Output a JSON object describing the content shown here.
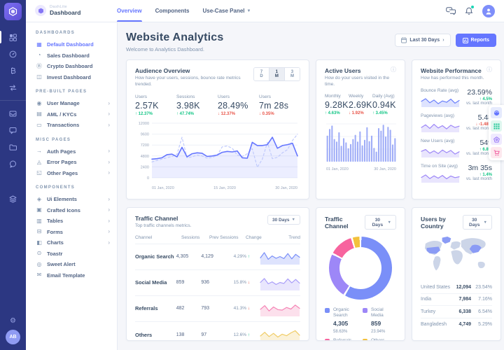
{
  "brand": {
    "name": "DashLite",
    "page": "Dashboard",
    "logo_icon": "hexagon-icon"
  },
  "topnav": {
    "tabs": [
      {
        "label": "Overview",
        "active": true,
        "has_caret": false
      },
      {
        "label": "Components",
        "active": false,
        "has_caret": false
      },
      {
        "label": "Use-Case Panel",
        "active": false,
        "has_caret": true
      }
    ],
    "icons": [
      "chat-bubbles-icon",
      "bell-icon",
      "user-avatar-icon"
    ]
  },
  "rail": {
    "icons": [
      "dashboards-grid-icon",
      "sales-gauge-icon",
      "crypto-bitcoin-icon",
      "exchange-icon",
      "inbox-icon",
      "chat-square-icon",
      "folder-icon",
      "message-circle-icon",
      "layers-icon",
      "settings-gear-icon"
    ],
    "avatar_initials": "AB"
  },
  "sidebar": {
    "sections": [
      {
        "title": "DASHBOARDS",
        "items": [
          {
            "label": "Default Dashboard",
            "icon": "grid-icon",
            "active": true,
            "arrow": false
          },
          {
            "label": "Sales Dashboard",
            "icon": "gauge-icon",
            "active": false,
            "arrow": false
          },
          {
            "label": "Crypto Dashboard",
            "icon": "bitcoin-icon",
            "active": false,
            "arrow": false
          },
          {
            "label": "Invest Dashboard",
            "icon": "invest-icon",
            "active": false,
            "arrow": false
          }
        ]
      },
      {
        "title": "PRE-BUILT PAGES",
        "items": [
          {
            "label": "User Manage",
            "icon": "users-icon",
            "active": false,
            "arrow": true
          },
          {
            "label": "AML / KYCs",
            "icon": "file-icon",
            "active": false,
            "arrow": true
          },
          {
            "label": "Transactions",
            "icon": "card-icon",
            "active": false,
            "arrow": true
          }
        ]
      },
      {
        "title": "MISC PAGES",
        "items": [
          {
            "label": "Auth Pages",
            "icon": "signin-icon",
            "active": false,
            "arrow": true
          },
          {
            "label": "Error Pages",
            "icon": "error-icon",
            "active": false,
            "arrow": true
          },
          {
            "label": "Other Pages",
            "icon": "pages-icon",
            "active": false,
            "arrow": true
          }
        ]
      },
      {
        "title": "COMPONENTS",
        "items": [
          {
            "label": "Ui Elements",
            "icon": "layers-icon",
            "active": false,
            "arrow": true
          },
          {
            "label": "Crafted Icons",
            "icon": "icons-icon",
            "active": false,
            "arrow": true
          },
          {
            "label": "Tables",
            "icon": "table-icon",
            "active": false,
            "arrow": true
          },
          {
            "label": "Forms",
            "icon": "form-icon",
            "active": false,
            "arrow": true
          },
          {
            "label": "Charts",
            "icon": "chart-icon",
            "active": false,
            "arrow": true
          },
          {
            "label": "Toastr",
            "icon": "toast-icon",
            "active": false,
            "arrow": false
          },
          {
            "label": "Sweet Alert",
            "icon": "alert-icon",
            "active": false,
            "arrow": false
          },
          {
            "label": "Email Template",
            "icon": "mail-icon",
            "active": false,
            "arrow": false
          }
        ]
      }
    ]
  },
  "page_header": {
    "title": "Website Analytics",
    "subtitle": "Welcome to Analytics Dashboard.",
    "range_button": {
      "label": "Last 30 Days",
      "icon": "calendar-icon"
    },
    "reports_button": {
      "label": "Reports",
      "icon": "bar-chart-icon"
    }
  },
  "cards": {
    "audience": {
      "title": "Audience Overview",
      "subtitle": "How have your users, sessions, bounce rate metrics trended.",
      "range_tabs": [
        {
          "label": "7 D",
          "active": false
        },
        {
          "label": "1 M",
          "active": true
        },
        {
          "label": "3 M",
          "active": false
        }
      ],
      "stats": [
        {
          "label": "Users",
          "value": "2.57K",
          "delta": "12.37%",
          "direction": "up"
        },
        {
          "label": "Sessions",
          "value": "3.98K",
          "delta": "47.74%",
          "direction": "up"
        },
        {
          "label": "Users",
          "value": "28.49%",
          "delta": "12.37%",
          "direction": "down"
        },
        {
          "label": "Users",
          "value": "7m 28s",
          "delta": "0.35%",
          "direction": "down"
        }
      ]
    },
    "active_users": {
      "title": "Active Users",
      "subtitle": "How do your users visited in the time.",
      "info_icon": "info-circle-icon",
      "stats": [
        {
          "label": "Monthly",
          "value": "9.28K",
          "delta": "4.63%",
          "direction": "up"
        },
        {
          "label": "Weekly",
          "value": "2.69K",
          "delta": "1.92%",
          "direction": "down"
        },
        {
          "label": "Daily (Avg)",
          "value": "0.94K",
          "delta": "3.45%",
          "direction": "up"
        }
      ]
    },
    "performance": {
      "title": "Website Performance",
      "subtitle": "How has performed this month.",
      "info_icon": "info-circle-icon",
      "note": "vs. last month",
      "rows": [
        {
          "label": "Bounce Rate (avg)",
          "value": "23.59%",
          "delta": "4.5%",
          "direction": "up",
          "note": "vs. last month"
        },
        {
          "label": "Pageviews (avg)",
          "value": "5.48",
          "delta": "-1.48%",
          "direction": "down",
          "note": "vs. last month"
        },
        {
          "label": "New Users (avg)",
          "value": "549",
          "delta": "6.8%",
          "direction": "up",
          "note": "vs. last month"
        },
        {
          "label": "Time on Site (avg)",
          "value": "3m 35s",
          "delta": "1.4%",
          "direction": "up",
          "note": "vs. last month"
        }
      ]
    },
    "traffic_table": {
      "title": "Traffic Channel",
      "subtitle": "Top traffic channels metrics.",
      "range_label": "30 Days",
      "columns": [
        "Channel",
        "Sessions",
        "Prev Sessions",
        "Change",
        "Trend"
      ],
      "rows": [
        {
          "channel": "Organic Search",
          "sessions": "4,305",
          "prev_sessions": "4,129",
          "change": "4.29%",
          "direction": "up"
        },
        {
          "channel": "Social Media",
          "sessions": "859",
          "prev_sessions": "936",
          "change": "15.8%",
          "direction": "down"
        },
        {
          "channel": "Referrals",
          "sessions": "482",
          "prev_sessions": "793",
          "change": "41.3%",
          "direction": "down"
        },
        {
          "channel": "Others",
          "sessions": "138",
          "prev_sessions": "97",
          "change": "12.6%",
          "direction": "up"
        }
      ]
    },
    "traffic_donut": {
      "title": "Traffic Channel",
      "range_label": "30 Days"
    },
    "users_by_country": {
      "title": "Users by Country",
      "range_label": "30 Days",
      "rows": [
        {
          "name": "United States",
          "users": "12,094",
          "pct": "23.54%"
        },
        {
          "name": "India",
          "users": "7,984",
          "pct": "7.16%"
        },
        {
          "name": "Turkey",
          "users": "6,338",
          "pct": "6.54%"
        },
        {
          "name": "Bangladesh",
          "users": "4,749",
          "pct": "5.29%"
        }
      ]
    }
  },
  "colors": {
    "primary": "#6576ff",
    "success": "#12c585",
    "danger": "#e85347",
    "rail_bg": "#2c3782",
    "page_bg": "#f5f6fa",
    "heading": "#364a63",
    "muted": "#8094ae",
    "organic": "#7a8ff8",
    "social": "#9d87f7",
    "referrals": "#f7649e",
    "others": "#f3c13c"
  },
  "chart_data": [
    {
      "id": "audience_overview",
      "type": "area",
      "title": "Audience Overview",
      "x_labels": [
        "01 Jan, 2020",
        "15 Jan, 2020",
        "30 Jan, 2020"
      ],
      "y_ticks": [
        0,
        2400,
        4800,
        7200,
        9600,
        12000
      ],
      "ylim": [
        0,
        12000
      ],
      "grid": true,
      "legend_position": "none",
      "series": [
        {
          "name": "Current period",
          "style": "solid",
          "color": "#6576ff",
          "values": [
            4100,
            4200,
            4400,
            5100,
            5200,
            4600,
            6700,
            4600,
            5300,
            5500,
            5400,
            4700,
            4800,
            5000,
            5600,
            5800,
            5700,
            5900,
            4400,
            4300,
            7800,
            7100,
            7100,
            7300,
            8900,
            6500,
            7100,
            7300,
            7600,
            4800
          ]
        },
        {
          "name": "Previous period",
          "style": "dashed",
          "color": "#c0cafc",
          "values": [
            3500,
            3800,
            4100,
            4400,
            4700,
            5200,
            8900,
            4400,
            4600,
            5000,
            4800,
            4300,
            4500,
            4900,
            6800,
            7000,
            6500,
            5000,
            4700,
            5300,
            6400,
            2300,
            4100,
            7800,
            4200,
            4500,
            5500,
            6200,
            8200,
            9600
          ]
        }
      ]
    },
    {
      "id": "active_users",
      "type": "bar",
      "color": "#9fadf7",
      "x_labels": [
        "01 Jan, 2020",
        "30 Jan, 2020"
      ],
      "ylim": [
        0,
        9000
      ],
      "grid": true,
      "values": [
        6200,
        7800,
        8600,
        5400,
        4800,
        7000,
        3800,
        5600,
        4600,
        3200,
        4200,
        5400,
        6400,
        4800,
        7200,
        3900,
        5200,
        8200,
        4900,
        6200,
        3300,
        2400,
        8000,
        7400,
        8800,
        6000,
        8300,
        7600,
        4100,
        5600
      ]
    },
    {
      "id": "performance_sparklines",
      "type": "line",
      "series": [
        {
          "name": "Bounce Rate (avg)",
          "color": "#6a7ffb",
          "values": [
            55,
            85,
            40,
            70,
            30,
            60,
            45,
            80,
            35,
            65
          ]
        },
        {
          "name": "Pageviews (avg)",
          "color": "#9d87f7",
          "values": [
            45,
            75,
            35,
            80,
            40,
            65,
            30,
            70,
            45,
            60
          ]
        },
        {
          "name": "New Users (avg)",
          "color": "#9d87f7",
          "values": [
            60,
            80,
            40,
            65,
            35,
            75,
            45,
            70,
            30,
            55
          ]
        },
        {
          "name": "Time on Site (avg)",
          "color": "#9d87f7",
          "values": [
            50,
            78,
            38,
            68,
            42,
            72,
            35,
            66,
            48,
            58
          ]
        }
      ]
    },
    {
      "id": "traffic_trends",
      "type": "line",
      "series": [
        {
          "name": "Organic Search",
          "color": "#7a8ff8",
          "values": [
            45,
            85,
            35,
            60,
            42,
            55,
            40,
            78,
            38,
            72,
            50
          ]
        },
        {
          "name": "Social Media",
          "color": "#a99df9",
          "values": [
            55,
            85,
            45,
            60,
            40,
            55,
            48,
            82,
            52,
            78,
            50
          ]
        },
        {
          "name": "Referrals",
          "color": "#f584b5",
          "values": [
            48,
            76,
            36,
            66,
            46,
            42,
            62,
            50,
            80,
            55
          ]
        },
        {
          "name": "Others",
          "color": "#f0cc66",
          "values": [
            42,
            70,
            38,
            62,
            34,
            56,
            44,
            66,
            82,
            48
          ]
        }
      ]
    },
    {
      "id": "traffic_channel_donut",
      "type": "pie",
      "segments": [
        {
          "label": "Organic Search",
          "value": 4305,
          "value_str": "4,305",
          "pct": 58.63,
          "pct_str": "58.63%",
          "color": "#7a8ff8"
        },
        {
          "label": "Social Media",
          "value": 859,
          "value_str": "859",
          "pct": 23.94,
          "pct_str": "23.94%",
          "color": "#9d87f7"
        },
        {
          "label": "Referrals",
          "value": 482,
          "value_str": "482",
          "pct": 12.94,
          "pct_str": "12.94%",
          "color": "#f7649e"
        },
        {
          "label": "Others",
          "value": 138,
          "value_str": "138",
          "pct": 4.49,
          "pct_str": "4.49%",
          "color": "#f3c13c"
        }
      ]
    }
  ]
}
